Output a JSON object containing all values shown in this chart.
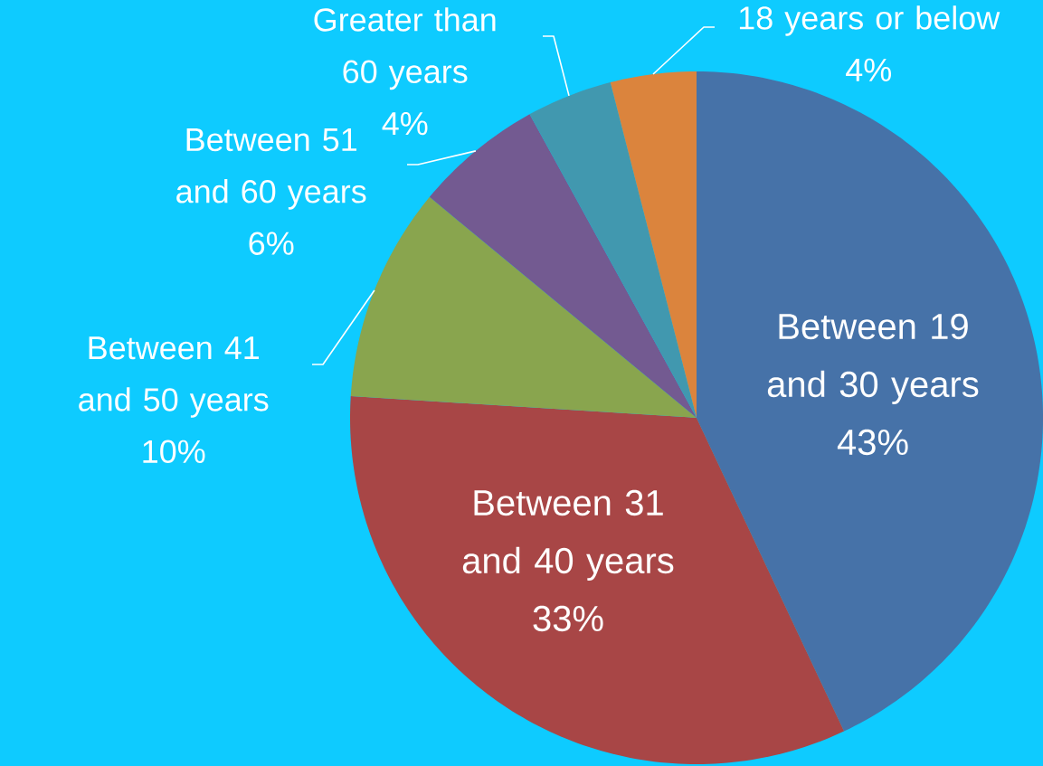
{
  "chart_data": {
    "type": "pie",
    "categories": [
      "Between 19 and 30 years",
      "Between 31 and 40 years",
      "Between 41 and 50 years",
      "Between 51 and 60 years",
      "Greater than 60 years",
      "18 years or below"
    ],
    "values": [
      43,
      33,
      10,
      6,
      4,
      4
    ],
    "value_labels": [
      "43%",
      "33%",
      "10%",
      "6%",
      "4%",
      "4%"
    ],
    "colors": [
      "#4672a8",
      "#a84646",
      "#89a54e",
      "#735a91",
      "#4198af",
      "#db843d"
    ]
  }
}
